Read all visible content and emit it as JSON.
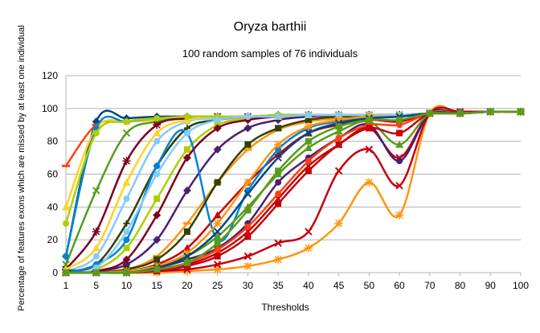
{
  "chart_data": {
    "type": "line",
    "title": "Oryza barthii",
    "subtitle": "100 random samples of 76 individuals",
    "xlabel": "Thresholds",
    "ylabel": "Percentage of features exons which are missed by at least one individual",
    "categories": [
      "1",
      "5",
      "10",
      "15",
      "20",
      "25",
      "30",
      "35",
      "40",
      "45",
      "50",
      "60",
      "70",
      "80",
      "90",
      "100"
    ],
    "ylim": [
      0,
      120
    ],
    "yticks": [
      0,
      20,
      40,
      60,
      80,
      100,
      120
    ],
    "grid": "horizontal",
    "legend": "none",
    "series": [
      {
        "color": "#004586",
        "marker": "diamond",
        "values": [
          10,
          92,
          94,
          95,
          95,
          95,
          95,
          96,
          96,
          96,
          96,
          96,
          97,
          97,
          98,
          98
        ]
      },
      {
        "color": "#ff420e",
        "marker": "dash",
        "values": [
          65,
          90,
          92,
          93,
          94,
          94,
          95,
          95,
          95,
          96,
          96,
          96,
          97,
          97,
          98,
          98
        ]
      },
      {
        "color": "#ffd320",
        "marker": "triangle",
        "values": [
          40,
          88,
          92,
          93,
          94,
          95,
          95,
          95,
          96,
          96,
          96,
          96,
          97,
          97,
          98,
          98
        ]
      },
      {
        "color": "#579d1c",
        "marker": "x",
        "values": [
          5,
          50,
          85,
          92,
          94,
          95,
          95,
          95,
          96,
          96,
          96,
          96,
          97,
          97,
          98,
          98
        ]
      },
      {
        "color": "#7e0021",
        "marker": "star",
        "values": [
          2,
          25,
          68,
          90,
          94,
          95,
          95,
          95,
          96,
          96,
          96,
          96,
          97,
          97,
          98,
          98
        ]
      },
      {
        "color": "#83caff",
        "marker": "circle",
        "values": [
          1,
          10,
          45,
          80,
          92,
          94,
          95,
          95,
          96,
          96,
          96,
          96,
          97,
          97,
          98,
          98
        ]
      },
      {
        "color": "#314004",
        "marker": "plus",
        "values": [
          1,
          5,
          30,
          65,
          88,
          93,
          95,
          95,
          96,
          96,
          96,
          96,
          97,
          97,
          98,
          98
        ]
      },
      {
        "color": "#aecf00",
        "marker": "square",
        "values": [
          0,
          2,
          15,
          45,
          75,
          90,
          94,
          95,
          96,
          96,
          96,
          96,
          97,
          97,
          98,
          98
        ]
      },
      {
        "color": "#4b1f6f",
        "marker": "diamond",
        "values": [
          0,
          1,
          5,
          20,
          50,
          75,
          88,
          93,
          95,
          96,
          96,
          96,
          97,
          97,
          98,
          98
        ]
      },
      {
        "color": "#ff950e",
        "marker": "dash",
        "values": [
          0,
          0,
          2,
          10,
          30,
          55,
          75,
          87,
          92,
          94,
          95,
          95,
          97,
          97,
          98,
          98
        ]
      },
      {
        "color": "#c5000b",
        "marker": "triangle",
        "values": [
          0,
          0,
          1,
          5,
          15,
          35,
          55,
          72,
          85,
          90,
          93,
          92,
          97,
          97,
          98,
          98
        ]
      },
      {
        "color": "#0084d1",
        "marker": "circle",
        "values": [
          0,
          5,
          20,
          65,
          85,
          20,
          50,
          75,
          88,
          92,
          94,
          95,
          97,
          98,
          98,
          98
        ]
      },
      {
        "color": "#0084d1",
        "marker": "circle",
        "values": [
          10,
          88,
          92,
          94,
          95,
          95,
          95,
          96,
          96,
          96,
          96,
          96,
          97,
          97,
          98,
          98
        ]
      },
      {
        "color": "#c5000b",
        "marker": "x",
        "values": [
          0,
          0,
          0,
          2,
          5,
          12,
          25,
          45,
          65,
          78,
          88,
          70,
          97,
          97,
          98,
          98
        ]
      },
      {
        "color": "#ff950e",
        "marker": "star",
        "values": [
          0,
          0,
          0,
          0,
          1,
          2,
          4,
          8,
          15,
          30,
          55,
          35,
          97,
          97,
          98,
          98
        ]
      },
      {
        "color": "#c5000b",
        "marker": "x",
        "values": [
          0,
          0,
          0,
          1,
          2,
          5,
          10,
          18,
          25,
          62,
          75,
          53,
          97,
          98,
          98,
          98
        ]
      },
      {
        "color": "#4b1f6f",
        "marker": "circle",
        "values": [
          0,
          0,
          1,
          3,
          8,
          15,
          30,
          55,
          70,
          82,
          90,
          68,
          97,
          97,
          98,
          98
        ]
      },
      {
        "color": "#579d1c",
        "marker": "triangle",
        "values": [
          0,
          0,
          1,
          4,
          10,
          22,
          40,
          60,
          76,
          86,
          92,
          78,
          97,
          97,
          98,
          98
        ]
      },
      {
        "color": "#ff420e",
        "marker": "circle",
        "values": [
          0,
          0,
          0,
          2,
          6,
          14,
          28,
          48,
          68,
          82,
          90,
          90,
          97,
          97,
          98,
          98
        ]
      },
      {
        "color": "#314004",
        "marker": "square",
        "values": [
          0,
          0,
          2,
          8,
          25,
          55,
          78,
          88,
          93,
          95,
          95,
          95,
          97,
          97,
          98,
          98
        ]
      },
      {
        "color": "#ffd320",
        "marker": "triangle",
        "values": [
          2,
          15,
          55,
          85,
          93,
          95,
          95,
          95,
          96,
          96,
          96,
          96,
          97,
          97,
          98,
          98
        ]
      },
      {
        "color": "#7e0021",
        "marker": "diamond",
        "values": [
          0,
          1,
          8,
          35,
          70,
          88,
          93,
          95,
          96,
          96,
          96,
          96,
          97,
          97,
          98,
          98
        ]
      },
      {
        "color": "#aecf00",
        "marker": "circle",
        "values": [
          30,
          85,
          92,
          94,
          95,
          95,
          95,
          96,
          96,
          96,
          96,
          96,
          97,
          97,
          98,
          98
        ]
      },
      {
        "color": "#83caff",
        "marker": "circle",
        "values": [
          0,
          3,
          25,
          60,
          85,
          93,
          95,
          95,
          96,
          96,
          96,
          96,
          97,
          97,
          98,
          98
        ]
      },
      {
        "color": "#ff950e",
        "marker": "star",
        "values": [
          0,
          0,
          1,
          4,
          12,
          30,
          55,
          78,
          89,
          93,
          95,
          95,
          97,
          97,
          98,
          98
        ]
      },
      {
        "color": "#004586",
        "marker": "x",
        "values": [
          0,
          0,
          0,
          3,
          10,
          25,
          48,
          70,
          85,
          91,
          94,
          95,
          97,
          97,
          98,
          98
        ]
      },
      {
        "color": "#c5000b",
        "marker": "square",
        "values": [
          0,
          0,
          0,
          1,
          4,
          10,
          22,
          42,
          62,
          78,
          88,
          85,
          97,
          97,
          98,
          98
        ]
      },
      {
        "color": "#579d1c",
        "marker": "square",
        "values": [
          0,
          0,
          0,
          2,
          6,
          18,
          38,
          62,
          80,
          89,
          93,
          93,
          97,
          97,
          98,
          98
        ]
      }
    ]
  }
}
